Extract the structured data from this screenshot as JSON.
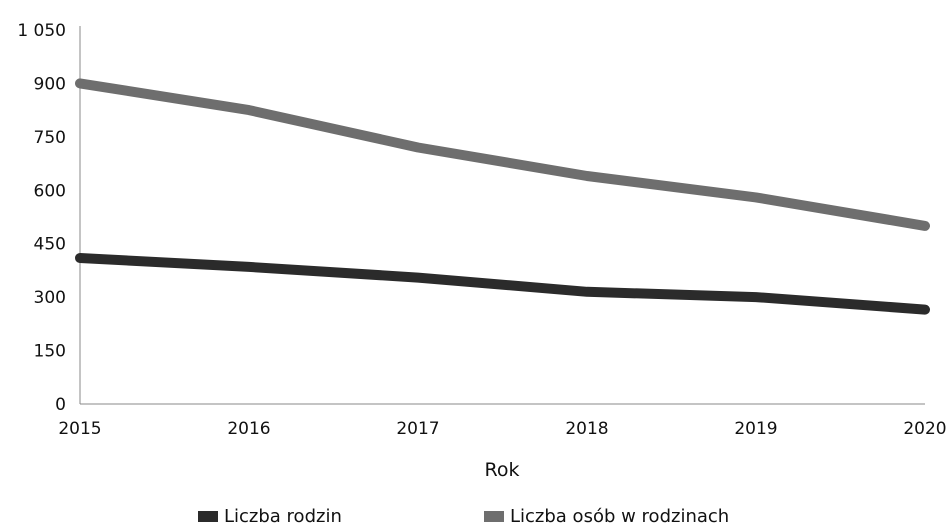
{
  "chart_data": {
    "type": "line",
    "x": [
      2015,
      2016,
      2017,
      2018,
      2019,
      2020
    ],
    "xlabel": "Rok",
    "ylabel": "",
    "ylim": [
      0,
      1050
    ],
    "yticks": [
      "0",
      "150",
      "300",
      "450",
      "600",
      "750",
      "900",
      "1 050"
    ],
    "xticks": [
      "2015",
      "2016",
      "2017",
      "2018",
      "2019",
      "2020"
    ],
    "grid": false,
    "legend_position": "bottom",
    "series": [
      {
        "name": "Liczba rodzin",
        "color": "#2b2b2b",
        "values": [
          410,
          385,
          355,
          315,
          300,
          265
        ]
      },
      {
        "name": "Liczba osób w rodzinach",
        "color": "#6e6e6e",
        "values": [
          900,
          825,
          720,
          640,
          580,
          500
        ]
      }
    ]
  }
}
